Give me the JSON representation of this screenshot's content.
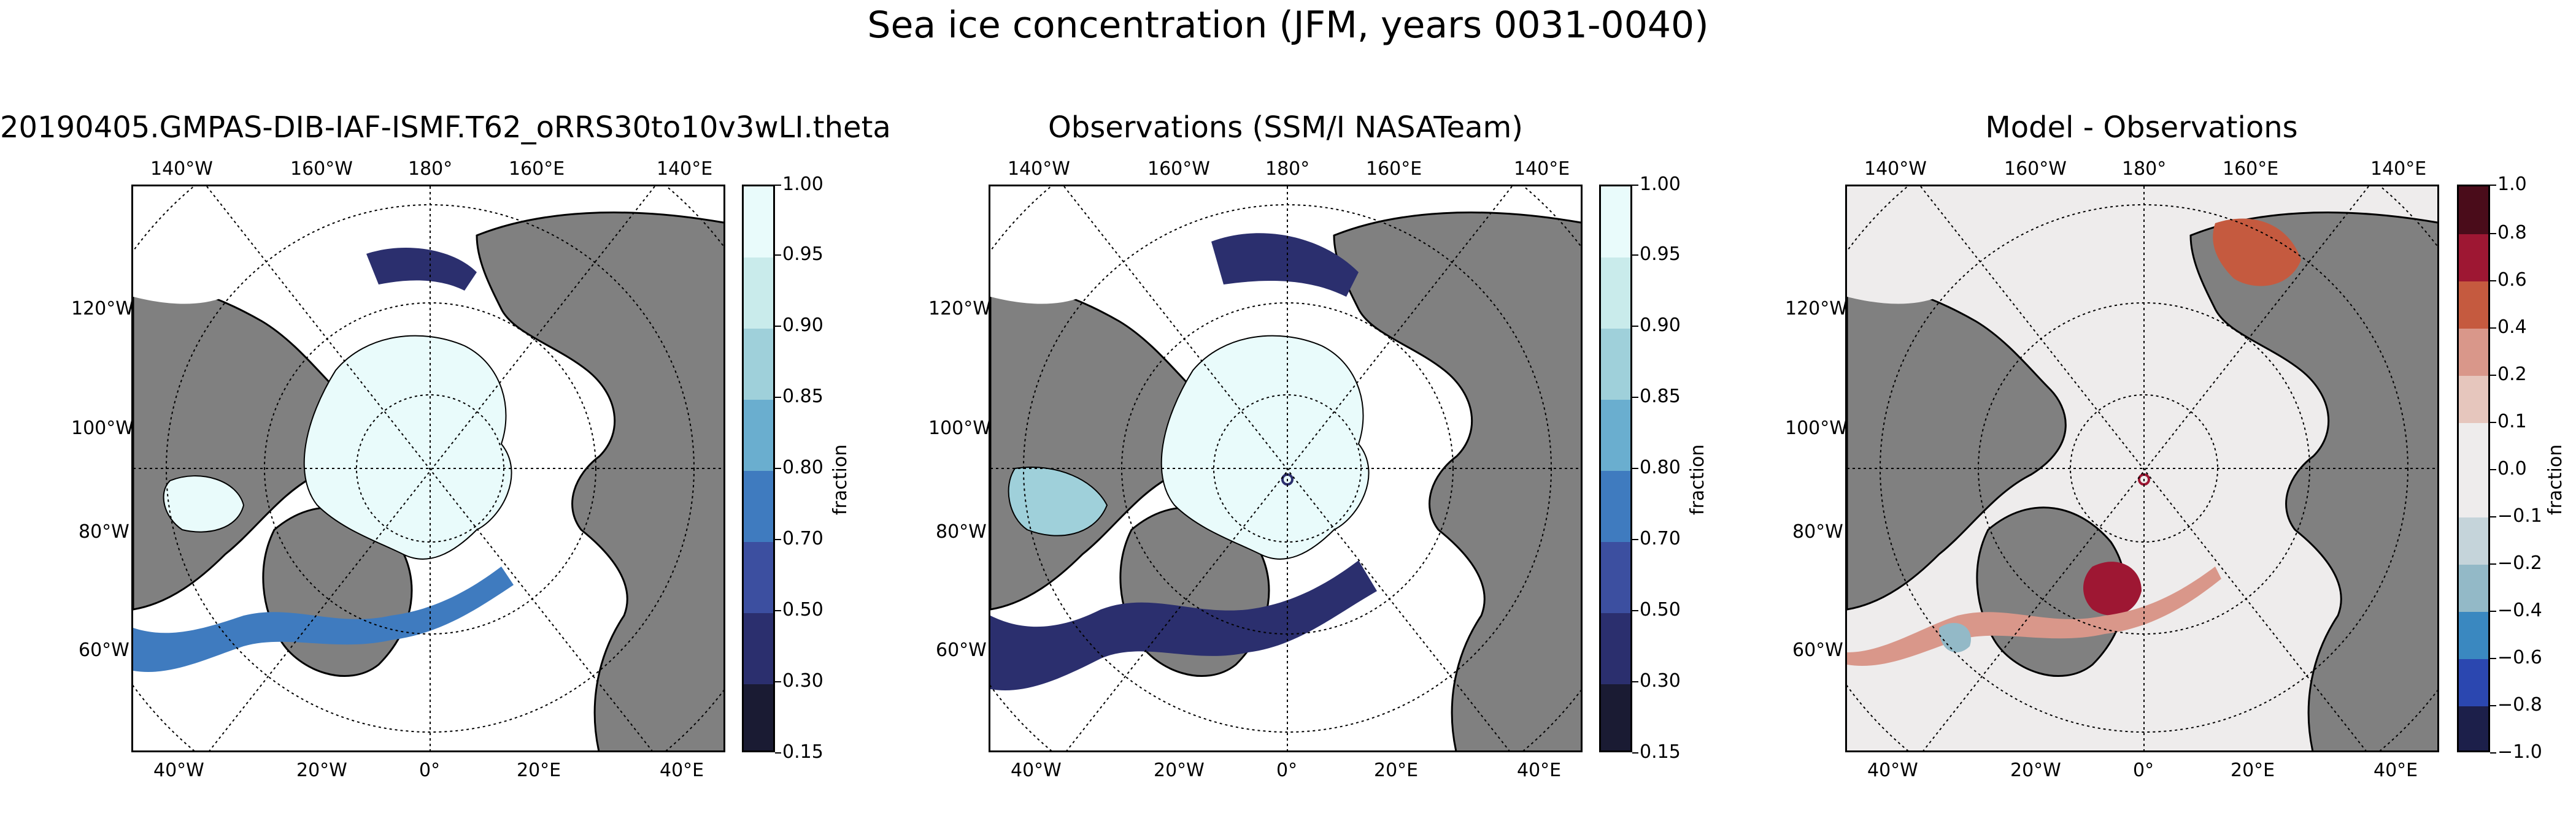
{
  "suptitle": "Sea ice concentration (JFM, years 0031-0040)",
  "lon_top": [
    "140°W",
    "160°W",
    "180°",
    "160°E",
    "140°E"
  ],
  "lon_bottom": [
    "40°W",
    "20°W",
    "0°",
    "20°E",
    "40°E"
  ],
  "lat_left": [
    "120°W",
    "100°W",
    "80°W",
    "60°W"
  ],
  "colors": {
    "land": "#808080",
    "ice_full": "#e9fbfb",
    "model_palette": [
      "#1a1b33",
      "#2b2f6e",
      "#3c4fa0",
      "#3f7bbf",
      "#6aaecf",
      "#9fd0da",
      "#c9ebeb",
      "#e9fbfb"
    ],
    "diff_palette": [
      "#1c1f4a",
      "#2b47b0",
      "#3a88c0",
      "#93b9c7",
      "#c5d4da",
      "#eeecec",
      "#eeecec",
      "#e6c6bd",
      "#d9978a",
      "#c55a3f",
      "#9e1733",
      "#4a0c1a"
    ]
  },
  "panels": [
    {
      "title": "20190405.GMPAS-DIB-IAF-ISMF.T62_oRRS30to10v3wLI.theta",
      "colorbar": {
        "label": "fraction",
        "ticks": [
          "0.15",
          "0.30",
          "0.50",
          "0.70",
          "0.80",
          "0.85",
          "0.90",
          "0.95",
          "1.00"
        ]
      }
    },
    {
      "title": "Observations (SSM/I NASATeam)",
      "colorbar": {
        "label": "fraction",
        "ticks": [
          "0.15",
          "0.30",
          "0.50",
          "0.70",
          "0.80",
          "0.85",
          "0.90",
          "0.95",
          "1.00"
        ]
      }
    },
    {
      "title": "Model - Observations",
      "colorbar": {
        "label": "fraction",
        "ticks": [
          "−1.0",
          "−0.8",
          "−0.6",
          "−0.4",
          "−0.2",
          "−0.1",
          "0.0",
          "0.1",
          "0.2",
          "0.4",
          "0.6",
          "0.8",
          "1.0"
        ]
      }
    }
  ]
}
